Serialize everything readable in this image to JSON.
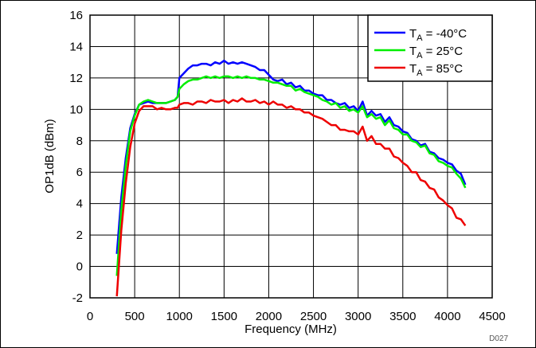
{
  "figure_id": "D027",
  "chart_data": {
    "type": "line",
    "title": "",
    "xlabel": "Frequency (MHz)",
    "ylabel": "OP1dB (dBm)",
    "xlim": [
      0,
      4500
    ],
    "ylim": [
      -2,
      16
    ],
    "x_ticks": [
      0,
      500,
      1000,
      1500,
      2000,
      2500,
      3000,
      3500,
      4000,
      4500
    ],
    "y_ticks": [
      -2,
      0,
      2,
      4,
      6,
      8,
      10,
      12,
      14,
      16
    ],
    "x_tick_labels": [
      "0",
      "500",
      "1000",
      "1500",
      "2000",
      "2500",
      "3000",
      "3500",
      "4000",
      "4500"
    ],
    "y_tick_labels": [
      "-2",
      "0",
      "2",
      "4",
      "6",
      "8",
      "10",
      "12",
      "14",
      "16"
    ],
    "grid": true,
    "legend_position": "top-right",
    "series": [
      {
        "name_main": "T",
        "name_sub": "A",
        "name_rest": " = -40°C",
        "color": "#0000ff",
        "x": [
          300,
          350,
          400,
          450,
          500,
          550,
          600,
          650,
          700,
          750,
          800,
          850,
          900,
          950,
          980,
          1000,
          1050,
          1100,
          1150,
          1200,
          1250,
          1300,
          1350,
          1400,
          1450,
          1500,
          1550,
          1600,
          1650,
          1700,
          1750,
          1800,
          1850,
          1900,
          1950,
          2000,
          2050,
          2100,
          2150,
          2200,
          2250,
          2300,
          2350,
          2400,
          2450,
          2500,
          2550,
          2600,
          2650,
          2700,
          2750,
          2800,
          2850,
          2900,
          2950,
          3000,
          3050,
          3100,
          3150,
          3200,
          3250,
          3300,
          3350,
          3400,
          3450,
          3500,
          3550,
          3600,
          3650,
          3700,
          3750,
          3800,
          3850,
          3900,
          3950,
          4000,
          4050,
          4100,
          4150,
          4200
        ],
        "values": [
          0.8,
          4.4,
          6.9,
          8.8,
          9.7,
          10.3,
          10.4,
          10.5,
          10.4,
          10.4,
          10.4,
          10.4,
          10.5,
          10.6,
          10.8,
          12.0,
          12.3,
          12.6,
          12.8,
          12.8,
          12.9,
          12.9,
          12.8,
          13.0,
          12.9,
          13.1,
          12.9,
          13.0,
          12.9,
          13.0,
          12.9,
          12.8,
          12.7,
          12.5,
          12.5,
          12.2,
          11.9,
          11.8,
          11.9,
          11.6,
          11.7,
          11.4,
          11.5,
          11.2,
          11.2,
          11.0,
          10.9,
          10.9,
          10.6,
          10.6,
          10.4,
          10.3,
          10.4,
          10.1,
          10.2,
          9.9,
          10.5,
          9.6,
          9.9,
          9.6,
          9.7,
          9.2,
          9.5,
          9.0,
          8.9,
          8.6,
          8.5,
          8.1,
          8.0,
          7.7,
          7.8,
          7.3,
          7.2,
          6.9,
          6.8,
          6.6,
          6.5,
          6.1,
          5.9,
          5.2
        ]
      },
      {
        "name_main": "T",
        "name_sub": "A",
        "name_rest": " = 25°C",
        "color": "#00ee00",
        "x": [
          300,
          350,
          400,
          450,
          500,
          550,
          600,
          650,
          700,
          750,
          800,
          850,
          900,
          950,
          980,
          1000,
          1050,
          1100,
          1150,
          1200,
          1250,
          1300,
          1350,
          1400,
          1450,
          1500,
          1550,
          1600,
          1650,
          1700,
          1750,
          1800,
          1850,
          1900,
          1950,
          2000,
          2050,
          2100,
          2150,
          2200,
          2250,
          2300,
          2350,
          2400,
          2450,
          2500,
          2550,
          2600,
          2650,
          2700,
          2750,
          2800,
          2850,
          2900,
          2950,
          3000,
          3050,
          3100,
          3150,
          3200,
          3250,
          3300,
          3350,
          3400,
          3450,
          3500,
          3550,
          3600,
          3650,
          3700,
          3750,
          3800,
          3850,
          3900,
          3950,
          4000,
          4050,
          4100,
          4150,
          4200
        ],
        "values": [
          -0.6,
          3.6,
          6.4,
          8.6,
          9.6,
          10.3,
          10.5,
          10.6,
          10.5,
          10.4,
          10.4,
          10.4,
          10.5,
          10.6,
          10.8,
          11.3,
          11.6,
          11.8,
          11.9,
          11.9,
          12.0,
          12.1,
          12.0,
          12.1,
          12.0,
          12.1,
          12.1,
          12.0,
          12.1,
          12.0,
          12.1,
          12.0,
          12.0,
          11.9,
          11.9,
          11.8,
          11.7,
          11.7,
          11.6,
          11.5,
          11.5,
          11.2,
          11.3,
          11.1,
          11.0,
          10.9,
          10.8,
          10.6,
          10.5,
          10.3,
          10.4,
          10.1,
          10.2,
          9.9,
          10.0,
          9.8,
          10.2,
          9.5,
          9.7,
          9.4,
          9.5,
          9.0,
          9.3,
          8.8,
          8.7,
          8.4,
          8.4,
          8.0,
          7.9,
          7.6,
          7.7,
          7.2,
          7.1,
          6.7,
          6.6,
          6.4,
          6.3,
          5.9,
          5.6,
          5.0
        ]
      },
      {
        "name_main": "T",
        "name_sub": "A",
        "name_rest": " = 85°C",
        "color": "#ee0000",
        "x": [
          300,
          350,
          400,
          450,
          500,
          550,
          600,
          650,
          700,
          750,
          800,
          850,
          900,
          950,
          980,
          1000,
          1050,
          1100,
          1150,
          1200,
          1250,
          1300,
          1350,
          1400,
          1450,
          1500,
          1550,
          1600,
          1650,
          1700,
          1750,
          1800,
          1850,
          1900,
          1950,
          2000,
          2050,
          2100,
          2150,
          2200,
          2250,
          2300,
          2350,
          2400,
          2450,
          2500,
          2550,
          2600,
          2650,
          2700,
          2750,
          2800,
          2850,
          2900,
          2950,
          3000,
          3050,
          3100,
          3150,
          3200,
          3250,
          3300,
          3350,
          3400,
          3450,
          3500,
          3550,
          3600,
          3650,
          3700,
          3750,
          3800,
          3850,
          3900,
          3950,
          4000,
          4050,
          4100,
          4150,
          4200
        ],
        "values": [
          -1.9,
          2.3,
          5.3,
          7.6,
          9.1,
          9.9,
          10.2,
          10.2,
          10.2,
          10.0,
          10.1,
          10.0,
          10.0,
          10.1,
          10.1,
          10.3,
          10.4,
          10.4,
          10.3,
          10.5,
          10.5,
          10.4,
          10.6,
          10.5,
          10.5,
          10.6,
          10.4,
          10.6,
          10.5,
          10.7,
          10.5,
          10.5,
          10.6,
          10.4,
          10.5,
          10.3,
          10.5,
          10.3,
          10.3,
          10.1,
          10.2,
          10.0,
          10.0,
          9.8,
          9.8,
          9.6,
          9.5,
          9.4,
          9.2,
          9.0,
          9.0,
          8.7,
          8.7,
          8.6,
          8.6,
          8.4,
          8.9,
          8.0,
          8.3,
          7.8,
          7.8,
          7.5,
          7.5,
          7.0,
          6.9,
          6.6,
          6.4,
          6.0,
          6.0,
          5.5,
          5.4,
          5.0,
          4.9,
          4.4,
          4.2,
          3.9,
          3.7,
          3.1,
          3.0,
          2.6
        ]
      }
    ]
  }
}
